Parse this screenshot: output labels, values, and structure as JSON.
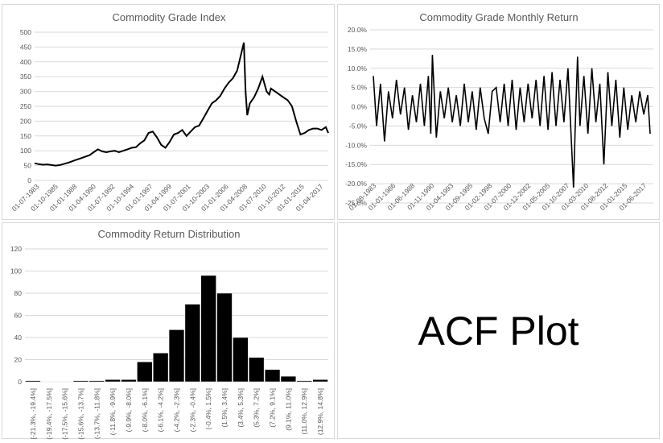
{
  "chart_data": [
    {
      "type": "line",
      "title": "Commodity Grade Index",
      "xlabel": "",
      "ylabel": "",
      "ylim": [
        0,
        500
      ],
      "yticks": [
        "0",
        "50",
        "100",
        "150",
        "200",
        "250",
        "300",
        "350",
        "400",
        "450",
        "500"
      ],
      "xtick_labels": [
        "01-07-1983",
        "01-10-1985",
        "01-01-1988",
        "01-04-1990",
        "01-07-1992",
        "01-10-1994",
        "01-01-1997",
        "01-04-1999",
        "01-07-2001",
        "01-10-2003",
        "01-01-2006",
        "01-04-2008",
        "01-07-2010",
        "01-10-2012",
        "01-01-2015",
        "01-04-2017"
      ],
      "x": [
        1983.5,
        1984,
        1984.5,
        1985,
        1985.5,
        1986,
        1986.5,
        1987,
        1987.5,
        1988,
        1988.5,
        1989,
        1989.5,
        1990,
        1990.5,
        1991,
        1991.5,
        1992,
        1992.5,
        1993,
        1993.5,
        1994,
        1994.5,
        1995,
        1995.5,
        1996,
        1996.5,
        1997,
        1997.5,
        1998,
        1998.5,
        1999,
        1999.5,
        2000,
        2000.5,
        2001,
        2001.5,
        2002,
        2002.5,
        2003,
        2003.5,
        2004,
        2004.5,
        2005,
        2005.5,
        2006,
        2006.5,
        2007,
        2007.5,
        2008,
        2008.3,
        2008.5,
        2008.7,
        2009,
        2009.5,
        2010,
        2010.5,
        2011,
        2011.3,
        2011.5,
        2012,
        2012.5,
        2013,
        2013.5,
        2014,
        2014.5,
        2015,
        2015.5,
        2016,
        2016.5,
        2017,
        2017.5,
        2018,
        2018.3
      ],
      "y": [
        58,
        55,
        53,
        54,
        52,
        50,
        52,
        56,
        60,
        65,
        70,
        75,
        80,
        85,
        95,
        105,
        98,
        95,
        98,
        100,
        95,
        100,
        105,
        110,
        112,
        125,
        135,
        160,
        165,
        145,
        120,
        110,
        130,
        155,
        160,
        170,
        150,
        165,
        180,
        185,
        210,
        235,
        260,
        270,
        285,
        310,
        330,
        345,
        370,
        430,
        465,
        300,
        220,
        260,
        280,
        310,
        350,
        300,
        290,
        310,
        300,
        290,
        280,
        270,
        250,
        200,
        155,
        160,
        170,
        175,
        175,
        170,
        180,
        160
      ]
    },
    {
      "type": "line",
      "title": "Commodity Grade Monthly Return",
      "xlabel": "",
      "ylabel": "",
      "ylim": [
        -25,
        20
      ],
      "yticks": [
        "-25.0%",
        "-20.0%",
        "-15.0%",
        "-10.0%",
        "-5.0%",
        "0.0%",
        "5.0%",
        "10.0%",
        "15.0%",
        "20.0%"
      ],
      "xtick_labels": [
        "01-08-1983",
        "01-01-1986",
        "01-06-1988",
        "01-11-1990",
        "01-04-1993",
        "01-09-1995",
        "01-02-1998",
        "01-07-2000",
        "01-12-2002",
        "01-05-2005",
        "01-10-2007",
        "01-03-2010",
        "01-08-2012",
        "01-01-2015",
        "01-06-2017"
      ],
      "x": [
        1983.6,
        1984,
        1984.5,
        1985,
        1985.5,
        1986,
        1986.5,
        1987,
        1987.5,
        1988,
        1988.5,
        1989,
        1989.5,
        1990,
        1990.5,
        1990.8,
        1991,
        1991.5,
        1992,
        1992.5,
        1993,
        1993.5,
        1994,
        1994.5,
        1995,
        1995.5,
        1996,
        1996.5,
        1997,
        1997.5,
        1998,
        1998.5,
        1999,
        1999.5,
        2000,
        2000.5,
        2001,
        2001.5,
        2002,
        2002.5,
        2003,
        2003.5,
        2004,
        2004.5,
        2005,
        2005.5,
        2006,
        2006.5,
        2007,
        2007.5,
        2008,
        2008.5,
        2008.7,
        2008.9,
        2009.2,
        2009.5,
        2010,
        2010.5,
        2011,
        2011.5,
        2012,
        2012.5,
        2013,
        2013.5,
        2014,
        2014.5,
        2015,
        2015.5,
        2016,
        2016.5,
        2017,
        2017.5,
        2018,
        2018.3
      ],
      "y": [
        8,
        -5,
        6,
        -9,
        4,
        -3,
        7,
        -2,
        5,
        -6,
        3,
        -4,
        6,
        -5,
        8,
        -7,
        13.5,
        -8,
        4,
        -3,
        5,
        -4,
        3,
        -5,
        6,
        -4,
        4,
        -6,
        5,
        -3,
        -7,
        4,
        5,
        -4,
        6,
        -5,
        7,
        -6,
        5,
        -4,
        6,
        -3,
        7,
        -5,
        8,
        -6,
        9,
        -5,
        7,
        -4,
        10,
        -12,
        -21,
        -6,
        13,
        -5,
        8,
        -7,
        10,
        -4,
        6,
        -15,
        9,
        -5,
        7,
        -8,
        5,
        -6,
        3,
        -4,
        4,
        -2,
        3,
        -7
      ]
    },
    {
      "type": "bar",
      "title": "Commodity Return Distribution",
      "xlabel": "",
      "ylabel": "",
      "ylim": [
        0,
        120
      ],
      "yticks": [
        "0",
        "20",
        "40",
        "60",
        "80",
        "100",
        "120"
      ],
      "categories": [
        "[-21.3%, -19.4%]",
        "(-19.4%, -17.5%]",
        "(-17.5%, -15.6%]",
        "(-15.6%, -13.7%]",
        "(-13.7%, -11.8%]",
        "(-11.8%, -9.9%]",
        "(-9.9%, -8.0%]",
        "(-8.0%, -6.1%]",
        "(-6.1%, -4.2%]",
        "(-4.2%, -2.3%]",
        "(-2.3%, -0.4%]",
        "(-0.4%, 1.5%]",
        "(1.5%, 3.4%]",
        "(3.4%, 5.3%]",
        "(5.3%, 7.2%]",
        "(7.2%, 9.1%]",
        "(9.1%, 11.0%]",
        "(11.0%, 12.9%]",
        "(12.9%, 14.8%]"
      ],
      "values": [
        1,
        0,
        0,
        1,
        1,
        2,
        2,
        18,
        26,
        47,
        70,
        96,
        80,
        40,
        22,
        11,
        5,
        1,
        2
      ]
    }
  ],
  "acf_panel": {
    "label": "ACF Plot"
  },
  "colors": {
    "line": "#000000",
    "bar": "#000000",
    "grid": "#d9d9d9",
    "axis_text": "#595959",
    "title": "#595959"
  }
}
